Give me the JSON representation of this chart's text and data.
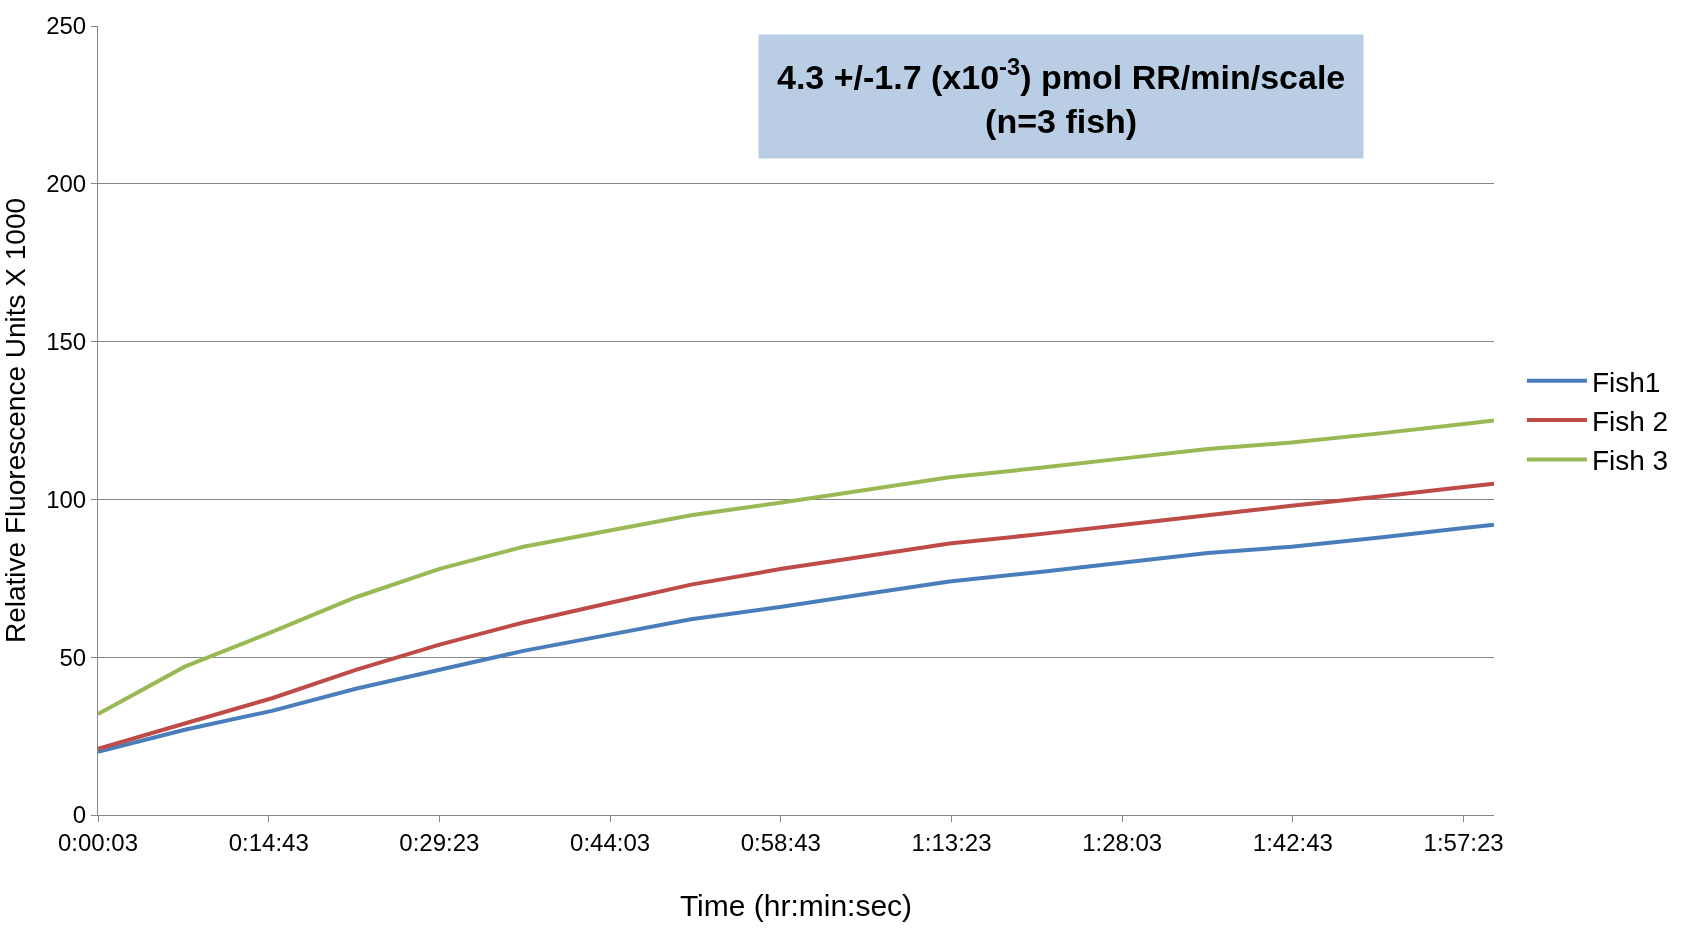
{
  "chart_data": {
    "type": "line",
    "xlabel": "Time (hr:min:sec)",
    "ylabel": "Relative Fluorescence Units X 1000",
    "annotations": [
      "4.3 +/-1.7 (x10$^{-3}$) pmol RR/min/scale\n(n=3 fish)"
    ],
    "x": [
      0.0008,
      0.125,
      0.25,
      0.37,
      0.49,
      0.61,
      0.73,
      0.85,
      0.98,
      1.1,
      1.22,
      1.35,
      1.47,
      1.59,
      1.71,
      1.84,
      1.96,
      2.0
    ],
    "series": [
      {
        "name": "Fish1",
        "color": "#4a7ebb",
        "values": [
          20,
          27,
          33,
          40,
          46,
          52,
          57,
          62,
          66,
          70,
          74,
          77,
          80,
          83,
          85,
          88,
          91,
          92
        ]
      },
      {
        "name": "Fish 2",
        "color": "#be4b48",
        "values": [
          21,
          29,
          37,
          46,
          54,
          61,
          67,
          73,
          78,
          82,
          86,
          89,
          92,
          95,
          98,
          101,
          104,
          105
        ]
      },
      {
        "name": "Fish 3",
        "color": "#98b954",
        "values": [
          32,
          47,
          58,
          69,
          78,
          85,
          90,
          95,
          99,
          103,
          107,
          110,
          113,
          116,
          118,
          121,
          124,
          125
        ]
      }
    ],
    "xlim": [
      0.0008,
      2.0
    ],
    "xticks": [
      {
        "value": 0.0008,
        "label": "0:00:03"
      },
      {
        "value": 0.2453,
        "label": "0:14:43"
      },
      {
        "value": 0.4897,
        "label": "0:29:23"
      },
      {
        "value": 0.7342,
        "label": "0:44:03"
      },
      {
        "value": 0.9786,
        "label": "0:58:43"
      },
      {
        "value": 1.2231,
        "label": "1:13:23"
      },
      {
        "value": 1.4675,
        "label": "1:28:03"
      },
      {
        "value": 1.7119,
        "label": "1:42:43"
      },
      {
        "value": 1.9564,
        "label": "1:57:23"
      }
    ],
    "ylim": [
      0,
      250
    ],
    "yticks": [
      0,
      50,
      100,
      150,
      200,
      250
    ],
    "grid": "y",
    "legend": "right",
    "marker": "none",
    "line_style": "solid"
  }
}
